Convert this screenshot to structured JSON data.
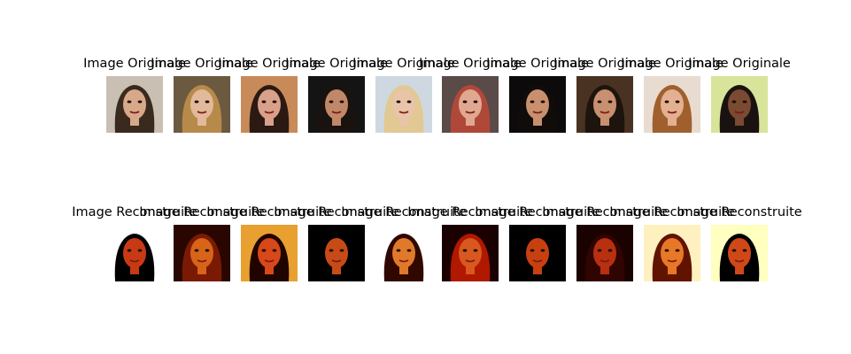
{
  "figure": {
    "rows": [
      {
        "name": "original",
        "titles": [
          "Image Originale",
          "Image Originale",
          "Image Originale",
          "Image Originale",
          "Image Originale",
          "Image Originale",
          "Image Originale",
          "Image Originale",
          "Image Originale",
          "Image Originale"
        ]
      },
      {
        "name": "reconstructed",
        "titles": [
          "Image Reconstruite",
          "Image Reconstruite",
          "Image Reconstruite",
          "Image Reconstruite",
          "Image Reconstruite",
          "Image Reconstruite",
          "Image Reconstruite",
          "Image Reconstruite",
          "Image Reconstruite",
          "Image Reconstruite"
        ]
      }
    ],
    "thumb_colors": {
      "original": [
        {
          "bg": "#c9c0b3",
          "hair": "#3a2a1e",
          "skin": "#d8a88a"
        },
        {
          "bg": "#6b5a40",
          "hair": "#b88a4a",
          "skin": "#e2b99a"
        },
        {
          "bg": "#c98a5a",
          "hair": "#2a1a12",
          "skin": "#d9a08a"
        },
        {
          "bg": "#141414",
          "hair": "#1a120e",
          "skin": "#c08868"
        },
        {
          "bg": "#cfd8e0",
          "hair": "#e2c892",
          "skin": "#e8c4a8"
        },
        {
          "bg": "#5a4a48",
          "hair": "#b0483a",
          "skin": "#e0a890"
        },
        {
          "bg": "#0c0a0a",
          "hair": "#100c0a",
          "skin": "#c8906e"
        },
        {
          "bg": "#4a3222",
          "hair": "#1e140e",
          "skin": "#c89070"
        },
        {
          "bg": "#e8dcd0",
          "hair": "#a0602e",
          "skin": "#e4b092"
        },
        {
          "bg": "#d8e49a",
          "hair": "#1a1210",
          "skin": "#7a4a32"
        }
      ],
      "reconstructed": [
        {
          "bg": "#ffffff",
          "hair": "#000000",
          "skin": "#c83a14"
        },
        {
          "bg": "#2a0600",
          "hair": "#7a1a04",
          "skin": "#d8641a"
        },
        {
          "bg": "#e8a030",
          "hair": "#200400",
          "skin": "#d84818"
        },
        {
          "bg": "#000000",
          "hair": "#000000",
          "skin": "#c84a16"
        },
        {
          "bg": "#ffffff",
          "hair": "#300800",
          "skin": "#e07a2a"
        },
        {
          "bg": "#1a0000",
          "hair": "#b01800",
          "skin": "#d85820"
        },
        {
          "bg": "#000000",
          "hair": "#000000",
          "skin": "#c84010"
        },
        {
          "bg": "#1a0200",
          "hair": "#300400",
          "skin": "#b83010"
        },
        {
          "bg": "#fff0c0",
          "hair": "#601400",
          "skin": "#e87828"
        },
        {
          "bg": "#ffffc0",
          "hair": "#000000",
          "skin": "#d04818"
        }
      ]
    }
  }
}
